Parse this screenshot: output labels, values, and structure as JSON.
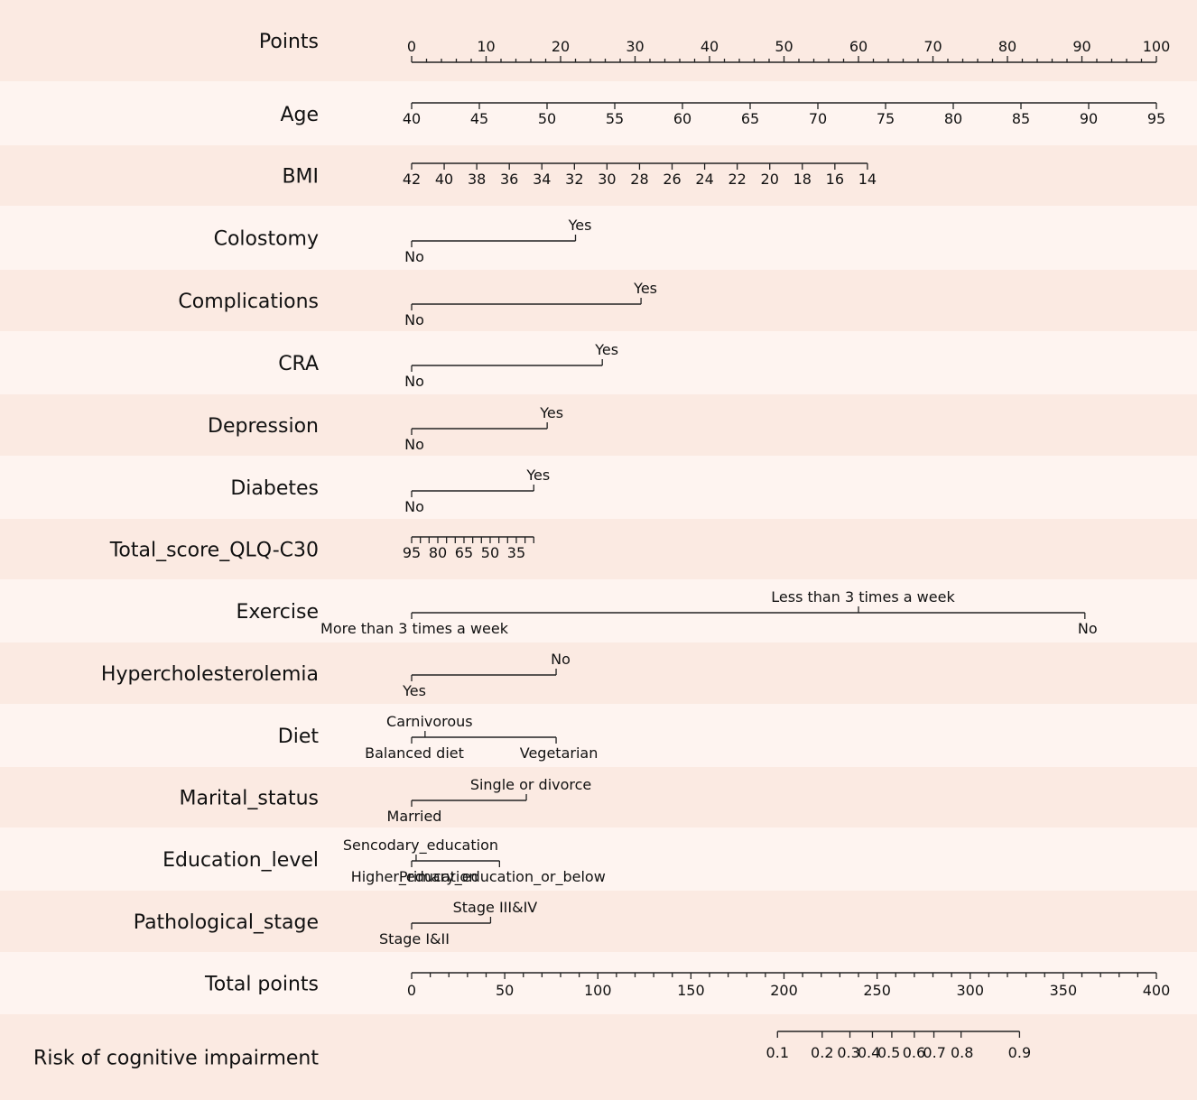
{
  "chart_data": {
    "type": "nomogram",
    "colors": {
      "band_dark": "#fbeae2",
      "band_light": "#fef4f0",
      "line": "#222222",
      "text": "#111111"
    },
    "rows": [
      {
        "id": "points",
        "label": "Points",
        "kind": "points",
        "major": [
          0,
          10,
          20,
          30,
          40,
          50,
          60,
          70,
          80,
          90,
          100
        ],
        "minor_step": 2
      },
      {
        "id": "age",
        "label": "Age",
        "kind": "continuous",
        "scale": [
          {
            "value": 40,
            "points": 0
          },
          {
            "value": 95,
            "points": 100
          }
        ],
        "ticks": [
          40,
          45,
          50,
          55,
          60,
          65,
          70,
          75,
          80,
          85,
          90,
          95
        ]
      },
      {
        "id": "bmi",
        "label": "BMI",
        "kind": "continuous",
        "scale": [
          {
            "value": 42,
            "points": 0
          },
          {
            "value": 14,
            "points": 61.2
          }
        ],
        "ticks": [
          42,
          40,
          38,
          36,
          34,
          32,
          30,
          28,
          26,
          24,
          22,
          20,
          18,
          16,
          14
        ]
      },
      {
        "id": "colostomy",
        "label": "Colostomy",
        "kind": "categorical",
        "levels": [
          {
            "name": "No",
            "points": 0,
            "pos": "below"
          },
          {
            "name": "Yes",
            "points": 22,
            "pos": "above"
          }
        ]
      },
      {
        "id": "complications",
        "label": "Complications",
        "kind": "categorical",
        "levels": [
          {
            "name": "No",
            "points": 0,
            "pos": "below"
          },
          {
            "name": "Yes",
            "points": 30.8,
            "pos": "above"
          }
        ]
      },
      {
        "id": "cra",
        "label": "CRA",
        "kind": "categorical",
        "levels": [
          {
            "name": "No",
            "points": 0,
            "pos": "below"
          },
          {
            "name": "Yes",
            "points": 25.6,
            "pos": "above"
          }
        ]
      },
      {
        "id": "depression",
        "label": "Depression",
        "kind": "categorical",
        "levels": [
          {
            "name": "No",
            "points": 0,
            "pos": "below"
          },
          {
            "name": "Yes",
            "points": 18.2,
            "pos": "above"
          }
        ]
      },
      {
        "id": "diabetes",
        "label": "Diabetes",
        "kind": "categorical",
        "levels": [
          {
            "name": "No",
            "points": 0,
            "pos": "below"
          },
          {
            "name": "Yes",
            "points": 16.4,
            "pos": "above"
          }
        ]
      },
      {
        "id": "qlq",
        "label": "Total_score_QLQ-C30",
        "kind": "continuous",
        "scale": [
          {
            "value": 95,
            "points": 0
          },
          {
            "value": 25,
            "points": 16.4
          }
        ],
        "ticks": [
          95,
          90,
          85,
          80,
          75,
          70,
          65,
          60,
          55,
          50,
          45,
          40,
          35,
          30,
          25
        ],
        "tick_labels": [
          95,
          80,
          65,
          50,
          35
        ]
      },
      {
        "id": "exercise",
        "label": "Exercise",
        "kind": "categorical",
        "levels": [
          {
            "name": "More than 3 times a week",
            "points": 0,
            "pos": "below"
          },
          {
            "name": "Less than 3 times a week",
            "points": 60,
            "pos": "above"
          },
          {
            "name": "No",
            "points": 90.4,
            "pos": "below"
          }
        ]
      },
      {
        "id": "hyperchol",
        "label": "Hypercholesterolemia",
        "kind": "categorical",
        "levels": [
          {
            "name": "Yes",
            "points": 0,
            "pos": "below"
          },
          {
            "name": "No",
            "points": 19.4,
            "pos": "above"
          }
        ]
      },
      {
        "id": "diet",
        "label": "Diet",
        "kind": "categorical",
        "levels": [
          {
            "name": "Balanced diet",
            "points": 0,
            "pos": "below"
          },
          {
            "name": "Carnivorous",
            "points": 1.8,
            "pos": "above"
          },
          {
            "name": "Vegetarian",
            "points": 19.4,
            "pos": "below"
          }
        ]
      },
      {
        "id": "marital",
        "label": "Marital_status",
        "kind": "categorical",
        "levels": [
          {
            "name": "Married",
            "points": 0,
            "pos": "below"
          },
          {
            "name": "Single or divorce",
            "points": 15.4,
            "pos": "above"
          }
        ]
      },
      {
        "id": "education",
        "label": "Education_level",
        "kind": "categorical",
        "levels": [
          {
            "name": "Higher_education",
            "points": 0,
            "pos": "below"
          },
          {
            "name": "Sencodary_education",
            "points": 0.6,
            "pos": "above"
          },
          {
            "name": "Primary_education_or_below",
            "points": 11.8,
            "pos": "below"
          }
        ]
      },
      {
        "id": "stage",
        "label": "Pathological_stage",
        "kind": "categorical",
        "levels": [
          {
            "name": "Stage I&II",
            "points": 0,
            "pos": "below"
          },
          {
            "name": "Stage III&IV",
            "points": 10.6,
            "pos": "above"
          }
        ]
      },
      {
        "id": "total",
        "label": "Total points",
        "kind": "total",
        "range": [
          0,
          400
        ],
        "major": [
          0,
          50,
          100,
          150,
          200,
          250,
          300,
          350,
          400
        ],
        "minor_step": 10
      },
      {
        "id": "risk",
        "label": "Risk of cognitive impairment",
        "kind": "risk",
        "ticks": [
          {
            "value": "0.1",
            "total": 196.5
          },
          {
            "value": "0.2",
            "total": 220.5
          },
          {
            "value": "0.3",
            "total": 235.4
          },
          {
            "value": "0.4",
            "total": 247.5
          },
          {
            "value": "0.5",
            "total": 257.9
          },
          {
            "value": "0.6",
            "total": 270
          },
          {
            "value": "0.7",
            "total": 280.5
          },
          {
            "value": "0.8",
            "total": 295.1
          },
          {
            "value": "0.9",
            "total": 326.5
          }
        ],
        "label_pos_totals": [
          196.5,
          220.5,
          234.7,
          245.6,
          256.3,
          269.8,
          280.8,
          295.6,
          326.5
        ]
      }
    ]
  }
}
